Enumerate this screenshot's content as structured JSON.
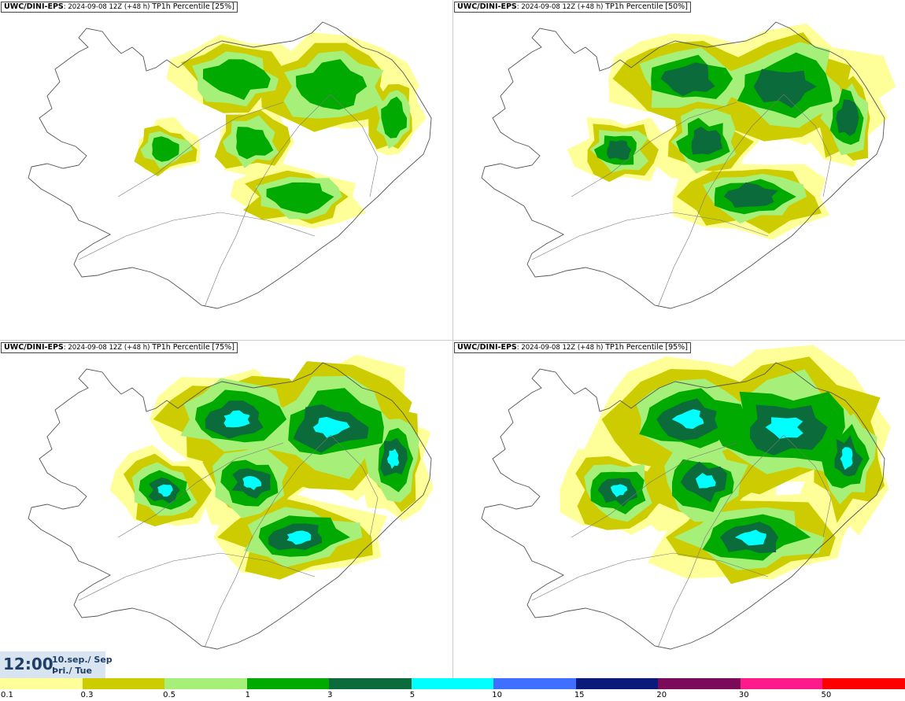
{
  "panels": [
    {
      "model": "UWC/DINI-EPS",
      "sep": ":",
      "run": "2024-09-08 12Z",
      "lead": "(+48 h)",
      "label": "TP1h Percentile",
      "pct": "[25%]"
    },
    {
      "model": "UWC/DINI-EPS",
      "sep": ":",
      "run": "2024-09-08 12Z",
      "lead": "(+48 h)",
      "label": "TP1h Percentile",
      "pct": "[50%]"
    },
    {
      "model": "UWC/DINI-EPS",
      "sep": ":",
      "run": "2024-09-08 12Z",
      "lead": "(+48 h)",
      "label": "TP1h Percentile",
      "pct": "[75%]"
    },
    {
      "model": "UWC/DINI-EPS",
      "sep": ":",
      "run": "2024-09-08 12Z",
      "lead": "(+48 h)",
      "label": "TP1h Percentile",
      "pct": "[95%]"
    }
  ],
  "time": {
    "value": "12:00",
    "date": "10.sep./ Sep",
    "day": "Þri./ Tue"
  },
  "legend": {
    "ticks": [
      "0.1",
      "0.3",
      "0.5",
      "1",
      "3",
      "5",
      "10",
      "15",
      "20",
      "30",
      "50"
    ],
    "colors": [
      "#ffff99",
      "#cccc00",
      "#a6f07a",
      "#00aa00",
      "#0b6b3a",
      "#00ffff",
      "#3f6fff",
      "#0a1a7a",
      "#7a0a5a",
      "#ff1a8c",
      "#ff0000"
    ]
  }
}
